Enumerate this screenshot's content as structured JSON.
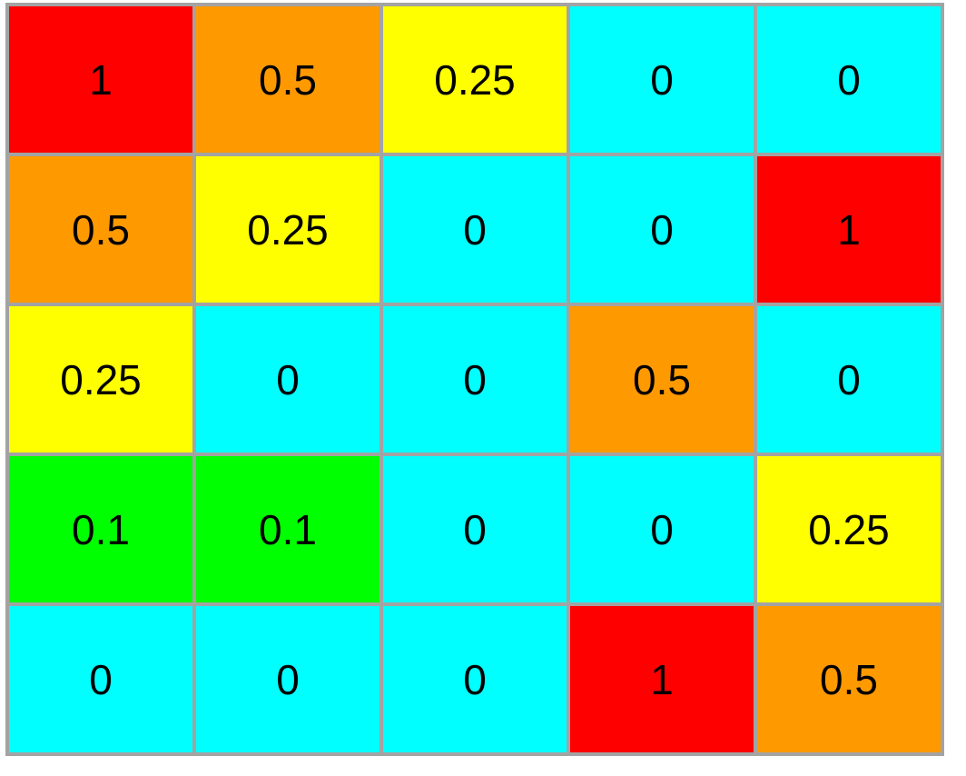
{
  "table": {
    "rows": [
      [
        1,
        0.5,
        0.25,
        0,
        0
      ],
      [
        0.5,
        0.25,
        0,
        0,
        1
      ],
      [
        0.25,
        0,
        0,
        0.5,
        0
      ],
      [
        0.1,
        0.1,
        0,
        0,
        0.25
      ],
      [
        0,
        0,
        0,
        1,
        0.5
      ]
    ],
    "cell_colors": [
      [
        "#ff0000",
        "#ff9900",
        "#ffff00",
        "#00ffff",
        "#00ffff"
      ],
      [
        "#ff9900",
        "#ffff00",
        "#00ffff",
        "#00ffff",
        "#ff0000"
      ],
      [
        "#ffff00",
        "#00ffff",
        "#00ffff",
        "#ff9900",
        "#00ffff"
      ],
      [
        "#00ff00",
        "#00ff00",
        "#00ffff",
        "#00ffff",
        "#ffff00"
      ],
      [
        "#00ffff",
        "#00ffff",
        "#00ffff",
        "#ff0000",
        "#ff9900"
      ]
    ]
  }
}
